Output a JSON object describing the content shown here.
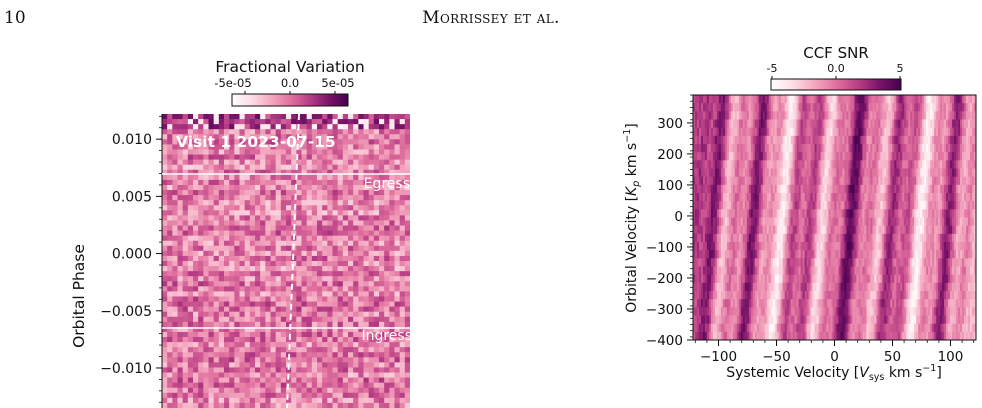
{
  "page": {
    "page_number": "10",
    "running_head": "Morrissey et al."
  },
  "colormap": [
    "#ffffff",
    "#fbdde6",
    "#f4a9c0",
    "#e1729f",
    "#b93f86",
    "#7a1469",
    "#45024e"
  ],
  "chart_data": [
    {
      "type": "heatmap",
      "title": "",
      "xlabel": "",
      "ylabel": "Orbital Phase",
      "ylim": [
        -0.0135,
        0.0122
      ],
      "yticks": [
        0.01,
        0.005,
        0.0,
        -0.005,
        -0.01
      ],
      "ytick_labels": [
        "0.010",
        "0.005",
        "0.000",
        "−0.005",
        "−0.010"
      ],
      "colorbar": {
        "label": "Fractional Variation",
        "range": [
          -7e-05,
          7e-05
        ],
        "ticks": [
          -5e-05,
          0.0,
          5e-05
        ],
        "tick_labels": [
          "-5e-05",
          "0.0",
          "5e-05"
        ]
      },
      "annotations": {
        "visit_label": "Visit 1 2023-07-15",
        "egress_label": "Egress",
        "ingress_label": "Ingress"
      },
      "egress_phase": 0.0067,
      "ingress_phase": -0.0067,
      "velocity_trace_line": "dashed white",
      "grid": false
    },
    {
      "type": "heatmap",
      "title": "",
      "xlabel": "Systemic Velocity [V_sys km s⁻¹]",
      "ylabel": "Orbital Velocity [K_p km s⁻¹]",
      "xlim": [
        -122,
        122
      ],
      "ylim": [
        -400,
        390
      ],
      "xticks": [
        -100,
        -50,
        0,
        50,
        100
      ],
      "xtick_labels": [
        "−100",
        "−50",
        "0",
        "50",
        "100"
      ],
      "yticks": [
        300,
        200,
        100,
        0,
        -100,
        -200,
        -300,
        -400
      ],
      "ytick_labels": [
        "300",
        "200",
        "100",
        "0",
        "−100",
        "−200",
        "−300",
        "−400"
      ],
      "colorbar": {
        "label": "CCF SNR",
        "range": [
          -5,
          5
        ],
        "ticks": [
          -5,
          0.0,
          5
        ],
        "tick_labels": [
          "-5",
          "0.0",
          "5"
        ]
      },
      "grid": false
    }
  ]
}
